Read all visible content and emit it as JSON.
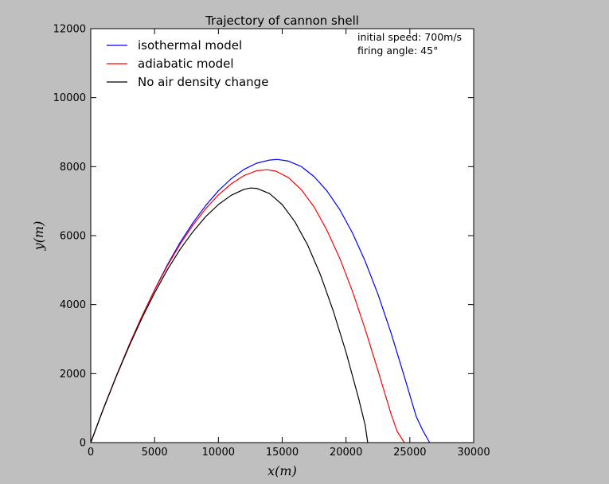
{
  "chart_data": {
    "type": "line",
    "title": "Trajectory of cannon shell",
    "xlabel": "x(m)",
    "ylabel": "y(m)",
    "xlim": [
      0,
      30000
    ],
    "ylim": [
      0,
      12000
    ],
    "xticks": [
      0,
      5000,
      10000,
      15000,
      20000,
      25000,
      30000
    ],
    "yticks": [
      0,
      2000,
      4000,
      6000,
      8000,
      10000,
      12000
    ],
    "xtick_labels": [
      "0",
      "5000",
      "10000",
      "15000",
      "20000",
      "25000",
      "30000"
    ],
    "ytick_labels": [
      "0",
      "2000",
      "4000",
      "6000",
      "8000",
      "10000",
      "12000"
    ],
    "grid": false,
    "legend_position": "top-left",
    "annotations": [
      "initial speed: 700m/s",
      "firing angle: 45°"
    ],
    "series": [
      {
        "name": "isothermal model",
        "color": "#0000ff",
        "points": [
          [
            0,
            0
          ],
          [
            1000,
            990
          ],
          [
            2000,
            1930
          ],
          [
            3000,
            2820
          ],
          [
            4000,
            3650
          ],
          [
            5000,
            4430
          ],
          [
            6000,
            5150
          ],
          [
            7000,
            5800
          ],
          [
            8000,
            6370
          ],
          [
            9000,
            6870
          ],
          [
            10000,
            7300
          ],
          [
            11000,
            7650
          ],
          [
            12000,
            7920
          ],
          [
            13000,
            8100
          ],
          [
            14000,
            8190
          ],
          [
            14600,
            8210
          ],
          [
            15500,
            8160
          ],
          [
            16500,
            8000
          ],
          [
            17500,
            7710
          ],
          [
            18500,
            7300
          ],
          [
            19500,
            6760
          ],
          [
            20500,
            6080
          ],
          [
            21500,
            5260
          ],
          [
            22500,
            4300
          ],
          [
            23500,
            3210
          ],
          [
            24500,
            2000
          ],
          [
            25500,
            760
          ],
          [
            26000,
            360
          ],
          [
            26550,
            0
          ]
        ]
      },
      {
        "name": "adiabatic model",
        "color": "#ff0000",
        "points": [
          [
            0,
            0
          ],
          [
            1000,
            990
          ],
          [
            2000,
            1930
          ],
          [
            3000,
            2820
          ],
          [
            4000,
            3650
          ],
          [
            5000,
            4420
          ],
          [
            6000,
            5120
          ],
          [
            7000,
            5750
          ],
          [
            8000,
            6300
          ],
          [
            9000,
            6780
          ],
          [
            10000,
            7180
          ],
          [
            11000,
            7500
          ],
          [
            12000,
            7740
          ],
          [
            13000,
            7880
          ],
          [
            13800,
            7910
          ],
          [
            14500,
            7870
          ],
          [
            15500,
            7680
          ],
          [
            16500,
            7330
          ],
          [
            17500,
            6830
          ],
          [
            18500,
            6160
          ],
          [
            19500,
            5350
          ],
          [
            20500,
            4390
          ],
          [
            21500,
            3290
          ],
          [
            22500,
            2090
          ],
          [
            23500,
            860
          ],
          [
            24000,
            330
          ],
          [
            24560,
            0
          ]
        ]
      },
      {
        "name": "No air density change",
        "color": "#000000",
        "points": [
          [
            0,
            0
          ],
          [
            1000,
            990
          ],
          [
            2000,
            1920
          ],
          [
            3000,
            2790
          ],
          [
            4000,
            3600
          ],
          [
            5000,
            4340
          ],
          [
            6000,
            5010
          ],
          [
            7000,
            5600
          ],
          [
            8000,
            6110
          ],
          [
            9000,
            6550
          ],
          [
            10000,
            6900
          ],
          [
            11000,
            7170
          ],
          [
            12000,
            7340
          ],
          [
            12500,
            7380
          ],
          [
            13000,
            7370
          ],
          [
            14000,
            7220
          ],
          [
            15000,
            6900
          ],
          [
            16000,
            6400
          ],
          [
            17000,
            5720
          ],
          [
            18000,
            4860
          ],
          [
            19000,
            3820
          ],
          [
            20000,
            2620
          ],
          [
            21000,
            1260
          ],
          [
            21500,
            510
          ],
          [
            21700,
            0
          ]
        ]
      }
    ]
  }
}
